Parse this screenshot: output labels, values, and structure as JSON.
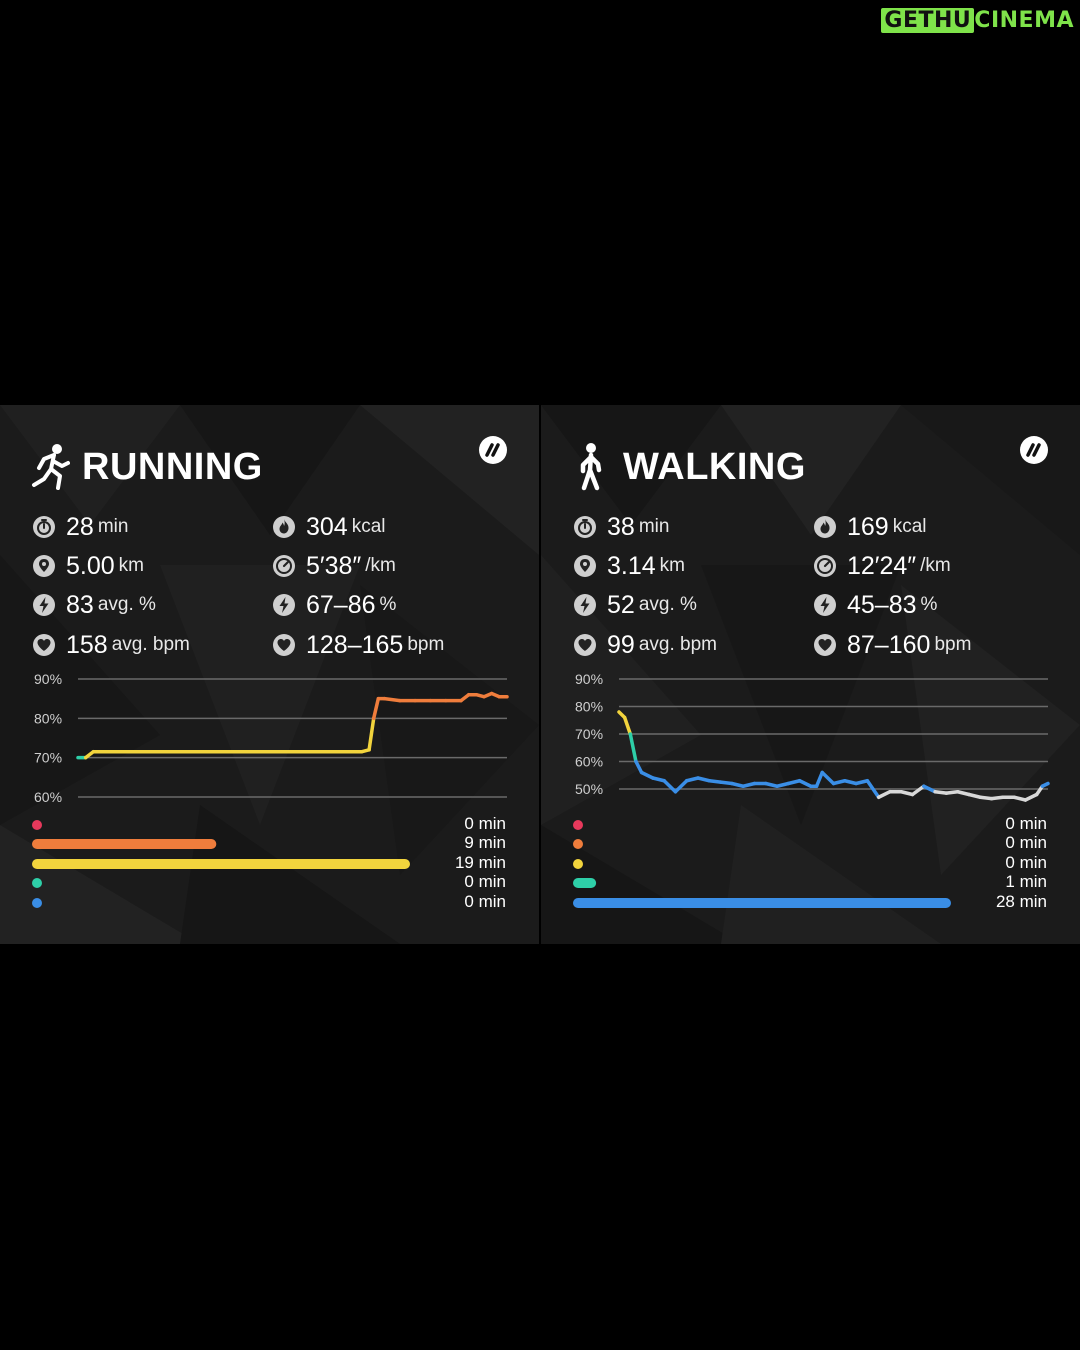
{
  "watermark": {
    "part1": "GETHU",
    "part2": "CINEMA"
  },
  "panels": [
    {
      "id": "running",
      "title": "RUNNING",
      "activity_icon": "runner-icon",
      "brand_icon": "whoop-logo-icon",
      "stats_left": [
        {
          "icon": "stopwatch-icon",
          "value": "28",
          "unit": "min"
        },
        {
          "icon": "location-pin-icon",
          "value": "5.00",
          "unit": "km"
        },
        {
          "icon": "lightning-icon",
          "value": "83",
          "unit": "avg. %"
        },
        {
          "icon": "heart-icon",
          "value": "158",
          "unit": "avg. bpm"
        }
      ],
      "stats_right": [
        {
          "icon": "flame-icon",
          "value": "304",
          "unit": "kcal"
        },
        {
          "icon": "speedometer-icon",
          "value": "5′38″",
          "unit": "/km"
        },
        {
          "icon": "lightning-icon",
          "value": "67–86",
          "unit": "%"
        },
        {
          "icon": "heart-icon",
          "value": "128–165",
          "unit": "bpm"
        }
      ],
      "chart_data": {
        "type": "line",
        "y_ticks": [
          "90%",
          "80%",
          "70%",
          "60%"
        ],
        "ylim": [
          60,
          90
        ],
        "x": [
          0,
          0.5,
          1,
          1.5,
          2,
          3,
          4,
          5,
          6,
          7,
          8,
          9,
          10,
          11,
          12,
          13,
          14,
          15,
          16,
          17,
          18,
          18.5,
          19,
          19.3,
          19.6,
          20,
          21,
          22,
          23,
          24,
          25,
          25.5,
          26,
          26.5,
          27,
          27.5,
          28
        ],
        "values": [
          70,
          70,
          71.5,
          71.5,
          71.5,
          71.5,
          71.5,
          71.5,
          71.5,
          71.5,
          71.5,
          71.5,
          71.5,
          71.5,
          71.5,
          71.5,
          71.5,
          71.5,
          71.5,
          71.5,
          71.5,
          71.5,
          72,
          80,
          85,
          85,
          84.5,
          84.5,
          84.5,
          84.5,
          84.5,
          86,
          86,
          85.5,
          86.3,
          85.5,
          85.5
        ]
      },
      "zones": [
        {
          "color": "#e8395c",
          "minutes": 0,
          "label": "0 min"
        },
        {
          "color": "#ef7d3c",
          "minutes": 9,
          "label": "9 min"
        },
        {
          "color": "#f2d43d",
          "minutes": 19,
          "label": "19 min"
        },
        {
          "color": "#2ecfa8",
          "minutes": 0,
          "label": "0 min"
        },
        {
          "color": "#3a8ee6",
          "minutes": 0,
          "label": "0 min"
        }
      ]
    },
    {
      "id": "walking",
      "title": "WALKING",
      "activity_icon": "walker-icon",
      "brand_icon": "whoop-logo-icon",
      "stats_left": [
        {
          "icon": "stopwatch-icon",
          "value": "38",
          "unit": "min"
        },
        {
          "icon": "location-pin-icon",
          "value": "3.14",
          "unit": "km"
        },
        {
          "icon": "lightning-icon",
          "value": "52",
          "unit": "avg. %"
        },
        {
          "icon": "heart-icon",
          "value": "99",
          "unit": "avg. bpm"
        }
      ],
      "stats_right": [
        {
          "icon": "flame-icon",
          "value": "169",
          "unit": "kcal"
        },
        {
          "icon": "speedometer-icon",
          "value": "12′24″",
          "unit": "/km"
        },
        {
          "icon": "lightning-icon",
          "value": "45–83",
          "unit": "%"
        },
        {
          "icon": "heart-icon",
          "value": "87–160",
          "unit": "bpm"
        }
      ],
      "chart_data": {
        "type": "line",
        "y_ticks": [
          "90%",
          "80%",
          "70%",
          "60%",
          "50%"
        ],
        "ylim": [
          50,
          90
        ],
        "x": [
          0,
          0.5,
          1,
          1.5,
          2,
          3,
          4,
          5,
          6,
          7,
          8,
          9,
          10,
          11,
          12,
          13,
          14,
          15,
          16,
          17,
          17.5,
          18,
          19,
          20,
          21,
          22,
          23,
          24,
          25,
          26,
          27,
          28,
          29,
          30,
          31,
          32,
          33,
          34,
          35,
          36,
          37,
          37.5,
          38
        ],
        "values": [
          78,
          76,
          70,
          60,
          56,
          54,
          53,
          49,
          53,
          54,
          53,
          52.5,
          52,
          51,
          52,
          52,
          51,
          52,
          53,
          51,
          51,
          56,
          52,
          53,
          52,
          53,
          47,
          49,
          49,
          48,
          51,
          49,
          48.5,
          49,
          48,
          47,
          46.5,
          47,
          47,
          46,
          48,
          51,
          52
        ]
      },
      "zones": [
        {
          "color": "#e8395c",
          "minutes": 0,
          "label": "0 min"
        },
        {
          "color": "#ef7d3c",
          "minutes": 0,
          "label": "0 min"
        },
        {
          "color": "#f2d43d",
          "minutes": 0,
          "label": "0 min"
        },
        {
          "color": "#2ecfa8",
          "minutes": 1,
          "label": "1 min"
        },
        {
          "color": "#3a8ee6",
          "minutes": 28,
          "label": "28 min"
        }
      ]
    }
  ]
}
